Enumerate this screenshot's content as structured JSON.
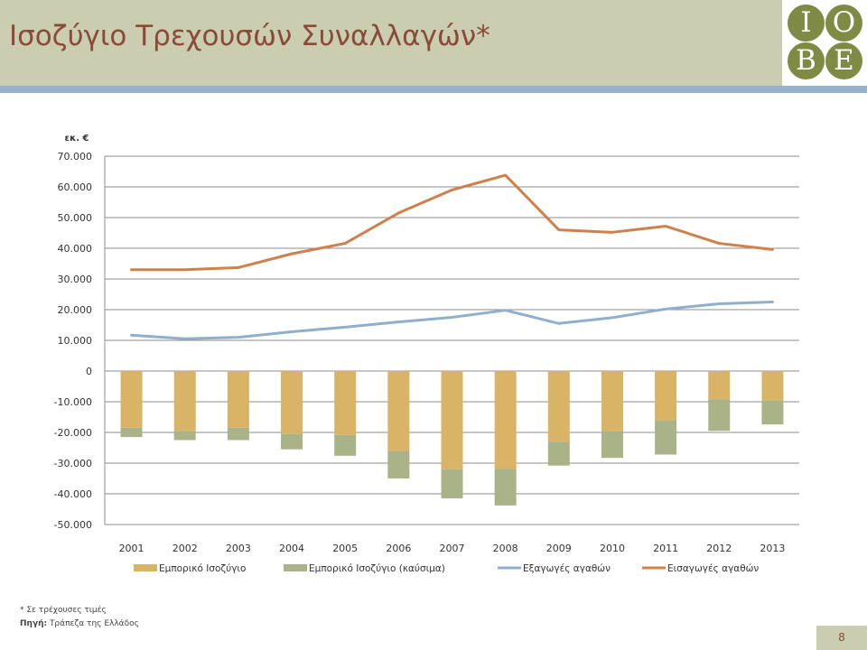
{
  "slide": {
    "title": "Ισοζύγιο Τρεχουσών Συναλλαγών*",
    "logo_letters": [
      "I",
      "O",
      "B",
      "E"
    ],
    "footnote": "* Σε τρέχουσες τιμές",
    "source_label": "Πηγή:",
    "source_text": " Τράπεζα της Ελλάδος",
    "page_number": "8"
  },
  "colors": {
    "header_bg": "#cbcdb0",
    "header_rule": "#96b1cd",
    "title": "#8a4a3a",
    "logo": "#7f8b44"
  },
  "chart_data": {
    "type": "bar",
    "unit_label": "εκ. €",
    "categories": [
      "2001",
      "2002",
      "2003",
      "2004",
      "2005",
      "2006",
      "2007",
      "2008",
      "2009",
      "2010",
      "2011",
      "2012",
      "2013"
    ],
    "ylim": [
      -50000,
      70000
    ],
    "yticks": [
      70000,
      60000,
      50000,
      40000,
      30000,
      20000,
      10000,
      0,
      -10000,
      -20000,
      -30000,
      -40000,
      -50000
    ],
    "ytick_labels": [
      "70.000",
      "60.000",
      "50.000",
      "40.000",
      "30.000",
      "20.000",
      "10.000",
      "0",
      "-10.000",
      "-20.000",
      "-30.000",
      "-40.000",
      "-50.000"
    ],
    "grid": true,
    "legend_position": "bottom",
    "stacked_bars": [
      {
        "name": "Εμπορικό Ισοζύγιο",
        "color": "#d9b466",
        "values": [
          -18500,
          -19500,
          -18500,
          -20500,
          -20800,
          -26000,
          -32000,
          -31800,
          -23000,
          -19500,
          -16000,
          -9200,
          -9600
        ]
      },
      {
        "name": "Εμπορικό Ισοζύγιο (καύσιμα)",
        "color": "#a9b387",
        "values": [
          -3000,
          -3000,
          -4000,
          -5000,
          -6800,
          -9000,
          -9500,
          -12000,
          -7800,
          -8800,
          -11200,
          -10300,
          -7800
        ]
      }
    ],
    "lines": [
      {
        "name": "Εξαγωγές αγαθών",
        "color": "#8fb0cc",
        "values": [
          11700,
          10500,
          11000,
          12800,
          14300,
          16000,
          17500,
          19800,
          15500,
          17400,
          20200,
          21900,
          22500
        ]
      },
      {
        "name": "Εισαγωγές αγαθών",
        "color": "#d0804a",
        "values": [
          33000,
          33000,
          33700,
          38200,
          41600,
          51500,
          59000,
          63800,
          46000,
          45200,
          47200,
          41600,
          39600
        ]
      }
    ]
  }
}
